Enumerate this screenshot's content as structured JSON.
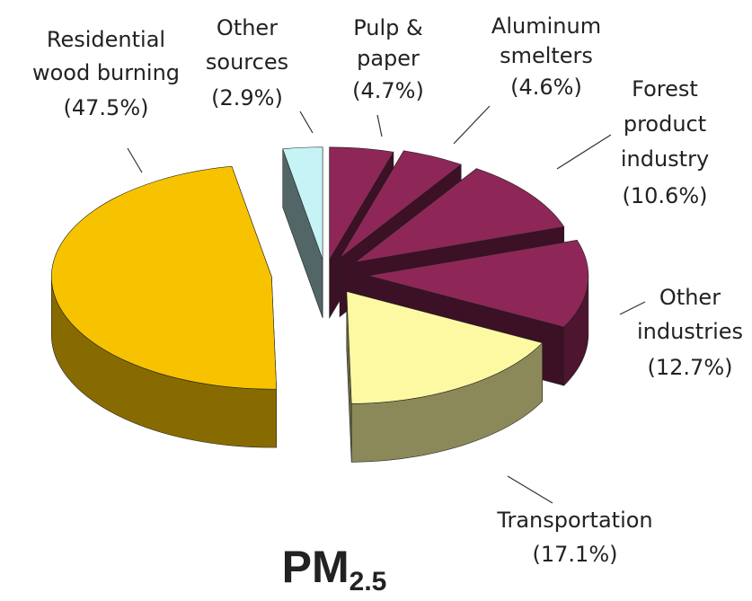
{
  "chart_data": {
    "type": "pie3d",
    "title": "PM",
    "title_subscript": "2.5",
    "categories": [
      [
        "Pulp &",
        "paper"
      ],
      [
        "Aluminum",
        "smelters"
      ],
      [
        "Forest",
        "product",
        "industry"
      ],
      [
        "Other",
        "industries"
      ],
      [
        "Transportation"
      ],
      [
        "Residential",
        "wood burning"
      ],
      [
        "Other",
        "sources"
      ]
    ],
    "values": [
      4.7,
      4.6,
      10.6,
      12.7,
      17.1,
      47.5,
      2.9
    ],
    "value_labels": [
      "(4.7%)",
      "(4.6%)",
      "(10.6%)",
      "(12.7%)",
      "(17.1%)",
      "(47.5%)",
      "(2.9%)"
    ],
    "colors": [
      "#8e2757",
      "#8e2757",
      "#8e2757",
      "#8e2757",
      "#fdf9a2",
      "#f7c300",
      "#c6f3f6"
    ]
  }
}
